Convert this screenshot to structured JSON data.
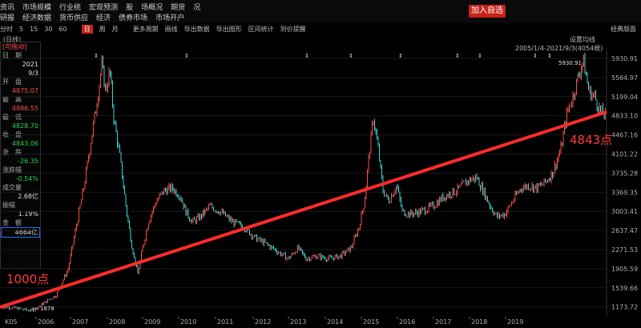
{
  "menu": {
    "row1": [
      "资讯",
      "市场规模",
      "行业统",
      "宏观预测",
      "股",
      "场概况",
      "期货",
      "况"
    ],
    "row2": [
      "研报",
      "经济数据",
      "货币供应",
      "经济",
      "债券市场",
      "市场开户"
    ]
  },
  "add_button": "加入自选",
  "toolbar": {
    "items": [
      "分时",
      "5",
      "15",
      "30",
      "60",
      "日",
      "周",
      "月",
      "更多周期",
      "画线",
      "导出数据",
      "导出图形",
      "区间统计",
      "到价提醒"
    ],
    "active": "日",
    "right": "经典版面"
  },
  "settings_label": "设置均线",
  "date_range": "2005/1/4-2021/9/3(4054根)",
  "period_tag": "(日线)",
  "info": {
    "movable": "[可拖动]",
    "date_label": "日　期",
    "year": "2021",
    "day": "9/3",
    "open_label": "开　盘",
    "open": "4875.07",
    "high_label": "最　高",
    "high": "4886.55",
    "low_label": "最　低",
    "low": "4828.70",
    "close_label": "收　盘",
    "close": "4843.06",
    "change_label": "涨　跌",
    "change": "-26.35",
    "pct_label": "涨跌幅",
    "pct": "-0.54%",
    "vol_label": "成交量",
    "vol": "2.68亿",
    "amp_label": "振幅",
    "amp": "1.19%",
    "amt_label": "金　额",
    "amt": "4664亿"
  },
  "annotations": {
    "start": "1000点",
    "end": "4843点",
    "high": "5930.91",
    "low": "1878"
  },
  "price_axis": [
    "5930.91",
    "5564.97",
    "5199.04",
    "4833.10",
    "4467.16",
    "4101.22",
    "3735.28",
    "3369.35",
    "3003.41",
    "2637.47",
    "2271.53",
    "1905.59",
    "1539.66",
    "1173.72"
  ],
  "years": [
    "2006",
    "2007",
    "2008",
    "2009",
    "2010",
    "2011",
    "2012",
    "2013",
    "2014",
    "2015",
    "2016",
    "2017",
    "2018",
    "2019"
  ],
  "year_start_label": "K05",
  "colors": {
    "up": "#ff4d4d",
    "down": "#36d6d6",
    "trend": "#ff2b2b",
    "accent": "#c8231c"
  }
}
